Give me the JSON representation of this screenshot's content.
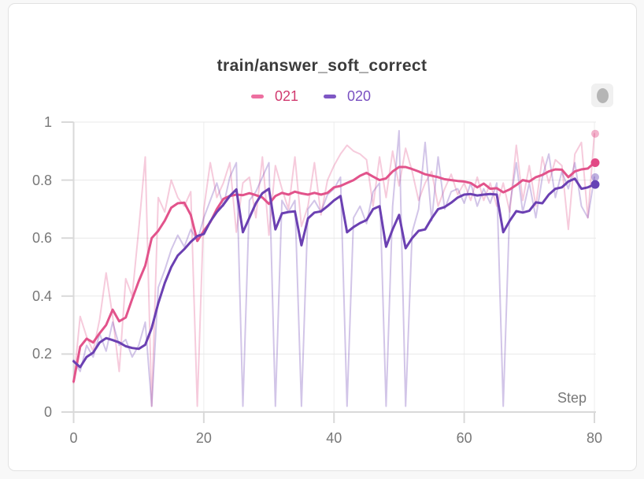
{
  "panel": {
    "title": "train/answer_soft_correct"
  },
  "legend": {
    "items": [
      {
        "label": "021"
      },
      {
        "label": "020"
      }
    ]
  },
  "colors": {
    "page_bg": "#f8f8f8",
    "panel_border": "#e2e2e2",
    "title_text": "#3b3b3b",
    "tick_text": "#787878",
    "grid": "#e8e8e8",
    "grid_vertical": "#ededed",
    "axis": "#d9d9d9",
    "series_021": "#e2538b",
    "series_021_text": "#d13a6f",
    "series_021_swatch": "#ed6fa0",
    "series_021_dot": "#e24985",
    "series_020": "#6b40b2",
    "series_020_text": "#7950c1",
    "series_020_swatch": "#7e57c4",
    "series_020_dot": "#6742b5",
    "raw_opacity": 0.3,
    "raw_dot_opacity": 0.42,
    "icon_bg": "#f0f0f0",
    "icon_blob": "#b5b5b5"
  },
  "chart_data": {
    "type": "line",
    "title": "train/answer_soft_correct",
    "xlabel": "Step",
    "ylabel": "",
    "xlim": [
      0,
      80
    ],
    "ylim": [
      0,
      1
    ],
    "x_ticks": [
      0,
      20,
      40,
      60,
      80
    ],
    "y_ticks": [
      0,
      0.2,
      0.4,
      0.6,
      0.8,
      1
    ],
    "grid": true,
    "legend_position": "top",
    "x": [
      0,
      1,
      2,
      3,
      4,
      5,
      6,
      7,
      8,
      9,
      10,
      11,
      12,
      13,
      14,
      15,
      16,
      17,
      18,
      19,
      20,
      21,
      22,
      23,
      24,
      25,
      26,
      27,
      28,
      29,
      30,
      31,
      32,
      33,
      34,
      35,
      36,
      37,
      38,
      39,
      40,
      41,
      42,
      43,
      44,
      45,
      46,
      47,
      48,
      49,
      50,
      51,
      52,
      53,
      54,
      55,
      56,
      57,
      58,
      59,
      60,
      61,
      62,
      63,
      64,
      65,
      66,
      67,
      68,
      69,
      70,
      71,
      72,
      73,
      74,
      75,
      76,
      77,
      78,
      79,
      80
    ],
    "series": [
      {
        "name": "021",
        "kind": "smoothed",
        "color_key": "series_021",
        "values": [
          0.105,
          0.225,
          0.253,
          0.24,
          0.272,
          0.3,
          0.353,
          0.313,
          0.326,
          0.39,
          0.451,
          0.505,
          0.6,
          0.625,
          0.66,
          0.705,
          0.72,
          0.722,
          0.68,
          0.59,
          0.625,
          0.655,
          0.7,
          0.735,
          0.745,
          0.75,
          0.748,
          0.755,
          0.748,
          0.74,
          0.718,
          0.745,
          0.756,
          0.75,
          0.76,
          0.754,
          0.75,
          0.756,
          0.75,
          0.756,
          0.775,
          0.78,
          0.79,
          0.8,
          0.815,
          0.825,
          0.812,
          0.8,
          0.806,
          0.83,
          0.845,
          0.845,
          0.838,
          0.83,
          0.82,
          0.815,
          0.81,
          0.803,
          0.8,
          0.797,
          0.795,
          0.79,
          0.775,
          0.788,
          0.77,
          0.772,
          0.758,
          0.768,
          0.783,
          0.8,
          0.795,
          0.81,
          0.818,
          0.83,
          0.837,
          0.836,
          0.81,
          0.83,
          0.837,
          0.84,
          0.86
        ]
      },
      {
        "name": "020",
        "kind": "smoothed",
        "color_key": "series_020",
        "values": [
          0.175,
          0.155,
          0.19,
          0.205,
          0.24,
          0.255,
          0.248,
          0.24,
          0.227,
          0.221,
          0.218,
          0.232,
          0.29,
          0.375,
          0.445,
          0.5,
          0.54,
          0.562,
          0.587,
          0.607,
          0.614,
          0.657,
          0.69,
          0.715,
          0.745,
          0.768,
          0.62,
          0.67,
          0.72,
          0.755,
          0.77,
          0.63,
          0.685,
          0.69,
          0.692,
          0.575,
          0.668,
          0.688,
          0.692,
          0.71,
          0.73,
          0.745,
          0.62,
          0.638,
          0.652,
          0.662,
          0.7,
          0.71,
          0.57,
          0.63,
          0.68,
          0.565,
          0.6,
          0.625,
          0.63,
          0.668,
          0.7,
          0.707,
          0.722,
          0.74,
          0.75,
          0.752,
          0.747,
          0.75,
          0.752,
          0.75,
          0.62,
          0.66,
          0.693,
          0.688,
          0.694,
          0.723,
          0.72,
          0.75,
          0.77,
          0.775,
          0.795,
          0.805,
          0.77,
          0.775,
          0.785
        ]
      },
      {
        "name": "021",
        "kind": "raw",
        "color_key": "series_021",
        "values": [
          0.1,
          0.33,
          0.26,
          0.21,
          0.32,
          0.48,
          0.33,
          0.14,
          0.46,
          0.4,
          0.63,
          0.88,
          0.02,
          0.74,
          0.69,
          0.8,
          0.74,
          0.71,
          0.76,
          0.02,
          0.7,
          0.86,
          0.74,
          0.79,
          0.86,
          0.62,
          0.79,
          0.81,
          0.67,
          0.88,
          0.61,
          0.85,
          0.77,
          0.7,
          0.88,
          0.64,
          0.71,
          0.86,
          0.68,
          0.8,
          0.85,
          0.89,
          0.92,
          0.9,
          0.89,
          0.87,
          0.71,
          0.88,
          0.74,
          0.9,
          0.78,
          0.91,
          0.83,
          0.73,
          0.79,
          0.83,
          0.71,
          0.77,
          0.82,
          0.75,
          0.79,
          0.73,
          0.81,
          0.73,
          0.79,
          0.71,
          0.79,
          0.69,
          0.92,
          0.73,
          0.85,
          0.71,
          0.88,
          0.79,
          0.87,
          0.85,
          0.63,
          0.89,
          0.93,
          0.67,
          0.96
        ]
      },
      {
        "name": "020",
        "kind": "raw",
        "color_key": "series_020",
        "values": [
          0.18,
          0.14,
          0.23,
          0.19,
          0.27,
          0.21,
          0.31,
          0.23,
          0.25,
          0.19,
          0.23,
          0.31,
          0.02,
          0.43,
          0.49,
          0.56,
          0.61,
          0.57,
          0.63,
          0.59,
          0.67,
          0.73,
          0.79,
          0.71,
          0.81,
          0.86,
          0.02,
          0.73,
          0.76,
          0.81,
          0.86,
          0.02,
          0.73,
          0.69,
          0.73,
          0.02,
          0.7,
          0.73,
          0.69,
          0.75,
          0.77,
          0.81,
          0.02,
          0.67,
          0.71,
          0.65,
          0.76,
          0.79,
          0.02,
          0.71,
          0.97,
          0.02,
          0.62,
          0.7,
          0.93,
          0.66,
          0.88,
          0.7,
          0.76,
          0.77,
          0.72,
          0.79,
          0.71,
          0.77,
          0.72,
          0.79,
          0.02,
          0.71,
          0.86,
          0.69,
          0.79,
          0.67,
          0.81,
          0.89,
          0.74,
          0.83,
          0.77,
          0.86,
          0.71,
          0.67,
          0.81
        ]
      }
    ],
    "end_markers": [
      {
        "series": "021",
        "kind": "smoothed",
        "x": 80,
        "y": 0.86
      },
      {
        "series": "020",
        "kind": "smoothed",
        "x": 80,
        "y": 0.785
      },
      {
        "series": "021",
        "kind": "raw",
        "x": 80,
        "y": 0.96
      },
      {
        "series": "020",
        "kind": "raw",
        "x": 80,
        "y": 0.81
      }
    ]
  }
}
